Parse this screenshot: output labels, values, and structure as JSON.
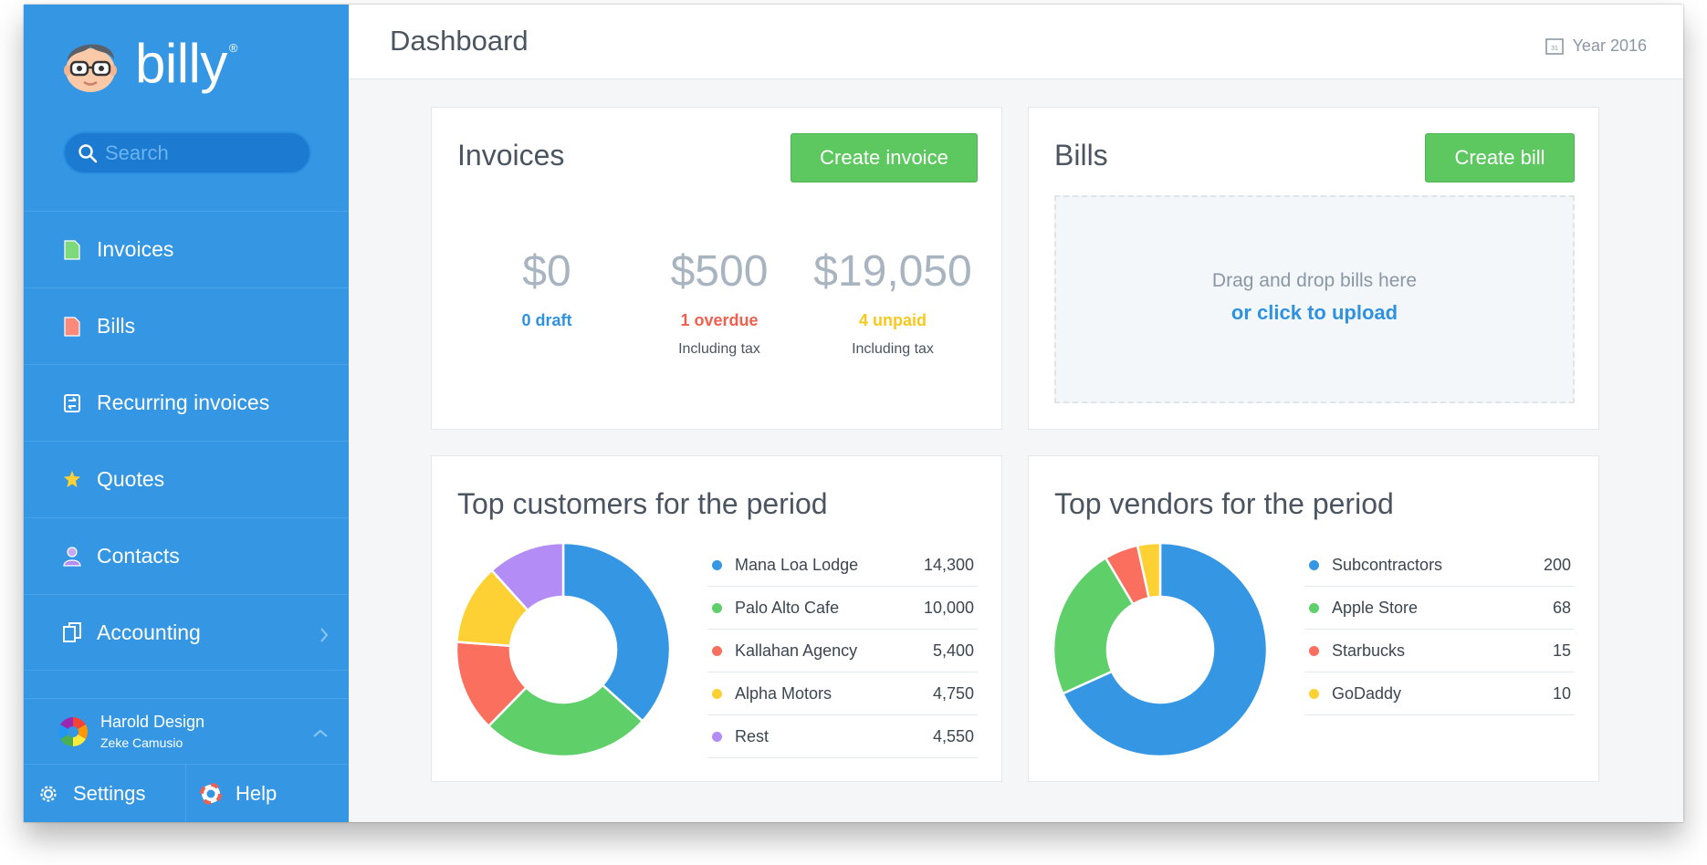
{
  "app": {
    "name": "billy",
    "reg": "®"
  },
  "sidebar": {
    "search_placeholder": "Search",
    "items": [
      {
        "label": "Invoices",
        "icon": "invoice-doc-icon"
      },
      {
        "label": "Bills",
        "icon": "bill-doc-icon"
      },
      {
        "label": "Recurring invoices",
        "icon": "recurring-icon"
      },
      {
        "label": "Quotes",
        "icon": "star-badge-icon"
      },
      {
        "label": "Contacts",
        "icon": "person-icon"
      },
      {
        "label": "Accounting",
        "icon": "accounting-icon"
      }
    ],
    "user": {
      "company": "Harold Design",
      "name": "Zeke Camusio"
    },
    "settings_label": "Settings",
    "help_label": "Help"
  },
  "header": {
    "title": "Dashboard",
    "year_label": "Year 2016",
    "calendar_day": "31"
  },
  "invoices": {
    "title": "Invoices",
    "create_label": "Create invoice",
    "stats": [
      {
        "amount": "$0",
        "label": "0 draft",
        "sub": "",
        "color": "#2f92e0"
      },
      {
        "amount": "$500",
        "label": "1 overdue",
        "sub": "Including tax",
        "color": "#f0604d"
      },
      {
        "amount": "$19,050",
        "label": "4 unpaid",
        "sub": "Including tax",
        "color": "#f8c81c"
      }
    ]
  },
  "bills": {
    "title": "Bills",
    "create_label": "Create bill",
    "drop_text": "Drag and drop bills here",
    "drop_link": "or click to upload"
  },
  "customers": {
    "title": "Top customers for the period",
    "chart_data": {
      "type": "pie",
      "categories": [
        "Mana Loa Lodge",
        "Palo Alto Cafe",
        "Kallahan Agency",
        "Alpha Motors",
        "Rest"
      ],
      "values": [
        14300,
        10000,
        5400,
        4750,
        4550
      ],
      "display_values": [
        "14,300",
        "10,000",
        "5,400",
        "4,750",
        "4,550"
      ],
      "colors": [
        "#3597e3",
        "#5fcf6a",
        "#fb6f5e",
        "#fdd033",
        "#b48cf5"
      ]
    }
  },
  "vendors": {
    "title": "Top vendors for the period",
    "chart_data": {
      "type": "pie",
      "categories": [
        "Subcontractors",
        "Apple Store",
        "Starbucks",
        "GoDaddy"
      ],
      "values": [
        200,
        68,
        15,
        10
      ],
      "display_values": [
        "200",
        "68",
        "15",
        "10"
      ],
      "colors": [
        "#3597e3",
        "#5fcf6a",
        "#fb6f5e",
        "#fdd033"
      ]
    }
  }
}
